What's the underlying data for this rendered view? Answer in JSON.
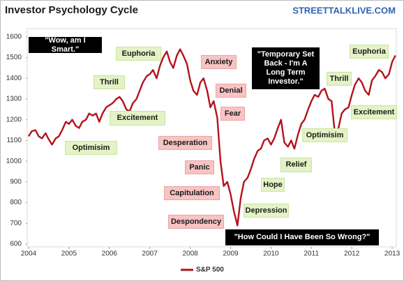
{
  "chart_data": {
    "type": "line",
    "title": "Investor Psychology Cycle",
    "source": "STREETTALKLIVE.COM",
    "x": [
      2004.0,
      2004.08,
      2004.17,
      2004.25,
      2004.33,
      2004.42,
      2004.5,
      2004.58,
      2004.67,
      2004.75,
      2004.83,
      2004.92,
      2005.0,
      2005.08,
      2005.17,
      2005.25,
      2005.33,
      2005.42,
      2005.5,
      2005.58,
      2005.67,
      2005.75,
      2005.83,
      2005.92,
      2006.0,
      2006.08,
      2006.17,
      2006.25,
      2006.33,
      2006.42,
      2006.5,
      2006.58,
      2006.67,
      2006.75,
      2006.83,
      2006.92,
      2007.0,
      2007.08,
      2007.17,
      2007.25,
      2007.33,
      2007.42,
      2007.5,
      2007.58,
      2007.67,
      2007.75,
      2007.83,
      2007.92,
      2008.0,
      2008.08,
      2008.17,
      2008.25,
      2008.33,
      2008.42,
      2008.5,
      2008.58,
      2008.67,
      2008.75,
      2008.83,
      2008.92,
      2009.0,
      2009.08,
      2009.17,
      2009.25,
      2009.33,
      2009.42,
      2009.5,
      2009.58,
      2009.67,
      2009.75,
      2009.83,
      2009.92,
      2010.0,
      2010.08,
      2010.17,
      2010.25,
      2010.33,
      2010.42,
      2010.5,
      2010.58,
      2010.67,
      2010.75,
      2010.83,
      2010.92,
      2011.0,
      2011.08,
      2011.17,
      2011.25,
      2011.33,
      2011.42,
      2011.5,
      2011.58,
      2011.67,
      2011.75,
      2011.83,
      2011.92,
      2012.0,
      2012.08,
      2012.17,
      2012.25,
      2012.33,
      2012.42,
      2012.5,
      2012.58,
      2012.67,
      2012.75,
      2012.83,
      2012.92,
      2013.0,
      2013.08
    ],
    "series": [
      {
        "name": "S&P 500",
        "color": "#b3121b",
        "values": [
          1120,
          1145,
          1150,
          1120,
          1110,
          1135,
          1105,
          1080,
          1110,
          1120,
          1150,
          1190,
          1180,
          1200,
          1170,
          1160,
          1190,
          1200,
          1230,
          1220,
          1230,
          1190,
          1230,
          1260,
          1270,
          1280,
          1300,
          1310,
          1290,
          1250,
          1240,
          1280,
          1300,
          1340,
          1380,
          1410,
          1420,
          1440,
          1400,
          1460,
          1500,
          1530,
          1480,
          1450,
          1510,
          1540,
          1510,
          1470,
          1390,
          1340,
          1320,
          1380,
          1400,
          1340,
          1260,
          1290,
          1210,
          1000,
          880,
          900,
          840,
          760,
          690,
          820,
          900,
          920,
          960,
          1010,
          1050,
          1060,
          1100,
          1110,
          1080,
          1110,
          1160,
          1200,
          1090,
          1070,
          1100,
          1060,
          1130,
          1180,
          1200,
          1250,
          1290,
          1320,
          1310,
          1340,
          1350,
          1300,
          1290,
          1140,
          1160,
          1230,
          1250,
          1260,
          1320,
          1370,
          1400,
          1380,
          1340,
          1320,
          1390,
          1410,
          1440,
          1430,
          1400,
          1420,
          1480,
          1510
        ]
      }
    ],
    "xlim": [
      2004,
      2013.12
    ],
    "xticks": [
      2004,
      2005,
      2006,
      2007,
      2008,
      2009,
      2010,
      2011,
      2012,
      2013
    ],
    "ylim": [
      600,
      1640
    ],
    "yticks": [
      600,
      700,
      800,
      900,
      1000,
      1100,
      1200,
      1300,
      1400,
      1500,
      1600
    ],
    "grid": false,
    "annotations": [
      {
        "text": "\"Wow, am I Smart.\"",
        "style": "black"
      },
      {
        "text": "Euphoria",
        "style": "green"
      },
      {
        "text": "Thrill",
        "style": "green"
      },
      {
        "text": "Excitement",
        "style": "green"
      },
      {
        "text": "Optimisim",
        "style": "green"
      },
      {
        "text": "Anxiety",
        "style": "pink"
      },
      {
        "text": "Denial",
        "style": "pink"
      },
      {
        "text": "Fear",
        "style": "pink"
      },
      {
        "text": "Desperation",
        "style": "pink"
      },
      {
        "text": "Panic",
        "style": "pink"
      },
      {
        "text": "Capitulation",
        "style": "pink"
      },
      {
        "text": "Despondency",
        "style": "pink"
      },
      {
        "text": "\"Temporary Set Back - I'm A Long Term Investor.\"",
        "style": "black"
      },
      {
        "text": "Depression",
        "style": "green"
      },
      {
        "text": "Hope",
        "style": "green"
      },
      {
        "text": "Relief",
        "style": "green"
      },
      {
        "text": "Optimisim",
        "style": "green"
      },
      {
        "text": "Thrill",
        "style": "green"
      },
      {
        "text": "Euphoria",
        "style": "green"
      },
      {
        "text": "Excitement",
        "style": "green"
      },
      {
        "text": "\"How Could I Have Been So Wrong?\"",
        "style": "black"
      }
    ]
  }
}
